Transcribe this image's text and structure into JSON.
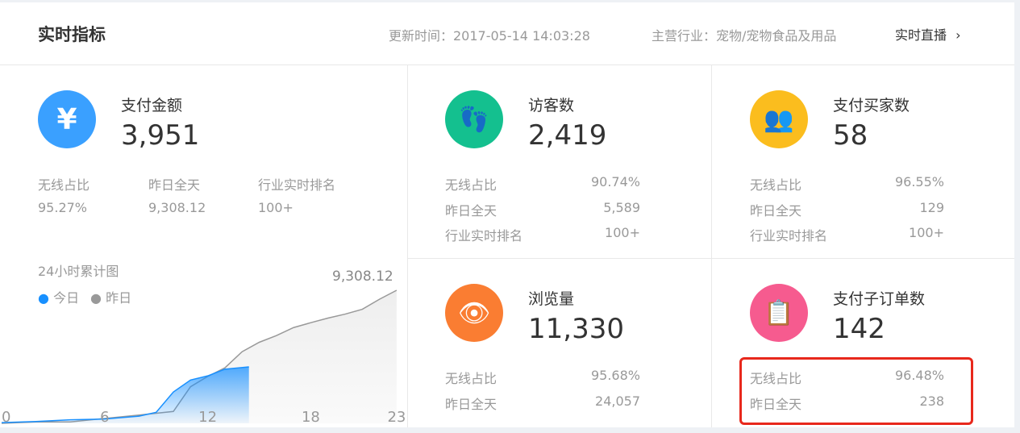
{
  "header": {
    "title": "实时指标",
    "update_time": "更新时间：2017-05-14 14:03:28",
    "industry": "主营行业：宠物/宠物食品及用品",
    "live_link": "实时直播"
  },
  "pay_amount": {
    "label": "支付金额",
    "value": "3,951",
    "icon": "yen-icon",
    "color": "#3aa0ff",
    "stats": [
      {
        "label": "无线占比",
        "value": "95.27%"
      },
      {
        "label": "昨日全天",
        "value": "9,308.12"
      },
      {
        "label": "行业实时排名",
        "value": "100+"
      }
    ]
  },
  "visitors": {
    "label": "访客数",
    "value": "2,419",
    "icon": "footprint-icon",
    "color": "#14c08f",
    "stats": [
      {
        "label": "无线占比",
        "value": "90.74%"
      },
      {
        "label": "昨日全天",
        "value": "5,589"
      },
      {
        "label": "行业实时排名",
        "value": "100+"
      }
    ]
  },
  "buyers": {
    "label": "支付买家数",
    "value": "58",
    "icon": "users-icon",
    "color": "#fbbd1e",
    "stats": [
      {
        "label": "无线占比",
        "value": "96.55%"
      },
      {
        "label": "昨日全天",
        "value": "129"
      },
      {
        "label": "行业实时排名",
        "value": "100+"
      }
    ]
  },
  "pageviews": {
    "label": "浏览量",
    "value": "11,330",
    "icon": "eye-icon",
    "color": "#fa7d32",
    "stats": [
      {
        "label": "无线占比",
        "value": "95.68%"
      },
      {
        "label": "昨日全天",
        "value": "24,057"
      }
    ]
  },
  "sub_orders": {
    "label": "支付子订单数",
    "value": "142",
    "icon": "clipboard-icon",
    "color": "#f65b8f",
    "stats": [
      {
        "label": "无线占比",
        "value": "96.48%"
      },
      {
        "label": "昨日全天",
        "value": "238"
      }
    ]
  },
  "chart_data": {
    "type": "area",
    "title": "24小时累计图",
    "legend": [
      {
        "name": "今日",
        "color": "#1890ff"
      },
      {
        "name": "昨日",
        "color": "#999999"
      }
    ],
    "legend_placement": "top-left",
    "xticks": [
      "0",
      "6",
      "12",
      "18",
      "23"
    ],
    "xlim": [
      0,
      23
    ],
    "ylim": [
      0,
      9308.12
    ],
    "peak_label": "9,308.12",
    "series": [
      {
        "name": "昨日",
        "x": [
          0,
          2,
          4,
          6,
          8,
          10,
          11,
          12,
          13,
          14,
          15,
          16,
          17,
          18,
          19,
          20,
          21,
          22,
          23
        ],
        "y": [
          0,
          100,
          100,
          340,
          580,
          830,
          2560,
          3280,
          3880,
          5010,
          5670,
          6140,
          6700,
          7040,
          7360,
          7640,
          7980,
          8680,
          9308.12
        ]
      },
      {
        "name": "今日",
        "x": [
          0,
          2,
          4,
          6,
          8,
          9,
          10,
          11,
          12,
          13,
          14.4
        ],
        "y": [
          50,
          130,
          250,
          300,
          500,
          770,
          2190,
          3030,
          3320,
          3790,
          3951
        ]
      }
    ]
  }
}
